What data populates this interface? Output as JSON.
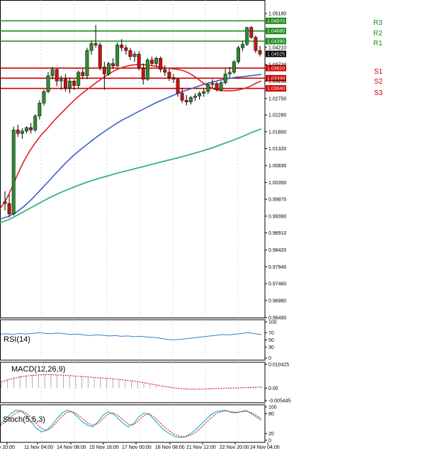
{
  "chart_data": {
    "type": "candlestick",
    "price_axis_ticks": [
      "1.05180",
      "1.04210",
      "1.03720",
      "1.03250",
      "1.02750",
      "1.02280",
      "1.01800",
      "1.01320",
      "1.00830",
      "1.00350",
      "0.99870",
      "0.99390",
      "0.98910",
      "0.98420",
      "0.97940",
      "0.97460",
      "0.96980",
      "0.96490"
    ],
    "price_range": [
      0.9649,
      1.0518
    ],
    "current_price": "1.04025",
    "x_ticks": [
      "ov 20:00",
      "11 Nov 04:00",
      "14 Nov 08:00",
      "15 Nov 16:00",
      "17 Nov 00:00",
      "18 Nov 08:00",
      "21 Nov 12:00",
      "22 Nov 20:00",
      "24 Nov 04:00"
    ],
    "levels": [
      {
        "name": "R3",
        "price": 1.0497,
        "label": "1.04970",
        "color": "#1a8a1a"
      },
      {
        "name": "R2",
        "price": 1.0468,
        "label": "1.04680",
        "color": "#1a8a1a"
      },
      {
        "name": "R1",
        "price": 1.0439,
        "label": "1.04390",
        "color": "#1a8a1a"
      },
      {
        "name": "",
        "price": 1.0362,
        "label": "1.03620",
        "color": "#cc0000"
      },
      {
        "name": "S1",
        "price": 1.0333,
        "label": "1.03330",
        "color": "#cc0000"
      },
      {
        "name": "S2",
        "price": 1.0333,
        "label": "",
        "color": "#cc0000"
      },
      {
        "name": "S3",
        "price": 1.0304,
        "label": "1.03040",
        "color": "#cc0000"
      }
    ],
    "candles": [
      [
        0.998,
        1.001,
        0.9955,
        0.9975
      ],
      [
        0.9975,
        1.0,
        0.9935,
        0.9945
      ],
      [
        0.9945,
        1.0195,
        0.994,
        1.0185
      ],
      [
        1.0185,
        1.02,
        1.0165,
        1.0175
      ],
      [
        1.0175,
        1.019,
        1.016,
        1.0182
      ],
      [
        1.0182,
        1.0195,
        1.0175,
        1.0192
      ],
      [
        1.0192,
        1.0205,
        1.0175,
        1.0185
      ],
      [
        1.0185,
        1.023,
        1.018,
        1.0225
      ],
      [
        1.0225,
        1.027,
        1.0215,
        1.0262
      ],
      [
        1.0262,
        1.03,
        1.0255,
        1.0295
      ],
      [
        1.0295,
        1.035,
        1.029,
        1.034
      ],
      [
        1.034,
        1.0365,
        1.033,
        1.0358
      ],
      [
        1.0358,
        1.036,
        1.031,
        1.0325
      ],
      [
        1.0325,
        1.034,
        1.03,
        1.033
      ],
      [
        1.033,
        1.0345,
        1.0295,
        1.0305
      ],
      [
        1.0305,
        1.0335,
        1.029,
        1.0325
      ],
      [
        1.0325,
        1.033,
        1.03,
        1.0312
      ],
      [
        1.0312,
        1.0355,
        1.0305,
        1.035
      ],
      [
        1.035,
        1.036,
        1.033,
        1.034
      ],
      [
        1.034,
        1.042,
        1.033,
        1.0412
      ],
      [
        1.0412,
        1.044,
        1.04,
        1.0432
      ],
      [
        1.0432,
        1.0485,
        1.042,
        1.0428
      ],
      [
        1.0428,
        1.0435,
        1.0355,
        1.0365
      ],
      [
        1.0365,
        1.038,
        1.03,
        1.0345
      ],
      [
        1.0345,
        1.038,
        1.034,
        1.0375
      ],
      [
        1.0375,
        1.039,
        1.036,
        1.0368
      ],
      [
        1.0368,
        1.0435,
        1.0365,
        1.0428
      ],
      [
        1.0428,
        1.0445,
        1.041,
        1.042
      ],
      [
        1.042,
        1.0428,
        1.04,
        1.0412
      ],
      [
        1.0412,
        1.042,
        1.0385,
        1.0395
      ],
      [
        1.0395,
        1.041,
        1.038,
        1.0402
      ],
      [
        1.0402,
        1.041,
        1.0355,
        1.0362
      ],
      [
        1.0362,
        1.0375,
        1.0315,
        1.033
      ],
      [
        1.033,
        1.039,
        1.0325,
        1.0385
      ],
      [
        1.0385,
        1.0395,
        1.037,
        1.0375
      ],
      [
        1.0375,
        1.0395,
        1.0365,
        1.039
      ],
      [
        1.039,
        1.0395,
        1.035,
        1.0358
      ],
      [
        1.0358,
        1.037,
        1.034,
        1.035
      ],
      [
        1.035,
        1.036,
        1.0325,
        1.0335
      ],
      [
        1.0335,
        1.0345,
        1.032,
        1.033
      ],
      [
        1.033,
        1.0335,
        1.028,
        1.029
      ],
      [
        1.029,
        1.0305,
        1.0262,
        1.027
      ],
      [
        1.027,
        1.0285,
        1.0255,
        1.0265
      ],
      [
        1.0265,
        1.0282,
        1.0258,
        1.0278
      ],
      [
        1.0278,
        1.029,
        1.0268,
        1.0282
      ],
      [
        1.0282,
        1.0295,
        1.0272,
        1.029
      ],
      [
        1.029,
        1.0302,
        1.028,
        1.0295
      ],
      [
        1.0295,
        1.032,
        1.0288,
        1.0315
      ],
      [
        1.0315,
        1.033,
        1.0305,
        1.0318
      ],
      [
        1.0318,
        1.0322,
        1.0295,
        1.03
      ],
      [
        1.03,
        1.0325,
        1.0295,
        1.032
      ],
      [
        1.032,
        1.036,
        1.0315,
        1.0345
      ],
      [
        1.0345,
        1.0365,
        1.0335,
        1.035
      ],
      [
        1.035,
        1.0385,
        1.0345,
        1.038
      ],
      [
        1.038,
        1.0425,
        1.0375,
        1.042
      ],
      [
        1.042,
        1.044,
        1.041,
        1.043
      ],
      [
        1.043,
        1.048,
        1.0425,
        1.0478
      ],
      [
        1.0478,
        1.0482,
        1.0445,
        1.045
      ],
      [
        1.045,
        1.0455,
        1.0405,
        1.0412
      ],
      [
        1.0412,
        1.0425,
        1.0395,
        1.0402
      ]
    ],
    "ma_fast": [
      0.996,
      0.9985,
      1.002,
      1.006,
      1.0095,
      1.0125,
      1.015,
      1.0172,
      1.019,
      1.021,
      1.0228,
      1.0245,
      1.0262,
      1.0278,
      1.0292,
      1.0305,
      1.0318,
      1.033,
      1.0342,
      1.0352,
      1.036,
      1.0366,
      1.037,
      1.0372,
      1.0372,
      1.037,
      1.0368,
      1.0365,
      1.0362,
      1.036,
      1.0358,
      1.0354,
      1.0346,
      1.0335,
      1.0322,
      1.031,
      1.0302,
      1.0298,
      1.0297,
      1.0297,
      1.0299,
      1.0303,
      1.0309,
      1.0318,
      1.0325
    ],
    "ma_mid": [
      0.993,
      0.9938,
      0.995,
      0.9968,
      0.999,
      1.0015,
      1.004,
      1.0065,
      1.009,
      1.0112,
      1.0132,
      1.015,
      1.0168,
      1.0184,
      1.02,
      1.0214,
      1.0226,
      1.0238,
      1.025,
      1.0262,
      1.0272,
      1.0282,
      1.0292,
      1.03,
      1.0308,
      1.0316,
      1.0322,
      1.0328,
      1.0332,
      1.0336,
      1.0338,
      1.0341,
      1.0344
    ],
    "ma_slow": [
      0.992,
      0.993,
      0.9945,
      0.996,
      0.9975,
      0.999,
      1.0003,
      1.0015,
      1.0026,
      1.0036,
      1.0045,
      1.0053,
      1.0061,
      1.0068,
      1.0075,
      1.0082,
      1.0089,
      1.0096,
      1.0103,
      1.011,
      1.0118,
      1.0126,
      1.0135,
      1.0145,
      1.0155,
      1.0166,
      1.0178,
      1.0188
    ],
    "panels": [
      {
        "name": "rsi",
        "label": "RSI(14)",
        "ticks": [
          "100",
          "70",
          "50",
          "30",
          "0"
        ],
        "range": [
          0,
          100
        ],
        "color": "#3a7bd5",
        "values": [
          66,
          67,
          65,
          68,
          66,
          68,
          70,
          68,
          67,
          69,
          67,
          65,
          66,
          64,
          62,
          64,
          63,
          61,
          62,
          60,
          61,
          59,
          60,
          58,
          57,
          55,
          52,
          50,
          51,
          53,
          55,
          57,
          59,
          61,
          63,
          65,
          64,
          66,
          68,
          70,
          67,
          65
        ]
      },
      {
        "name": "macd",
        "label": "MACD(12,26,9)",
        "ticks": [
          "0.010425",
          "0.00",
          "-0.005445"
        ],
        "range": [
          -0.005445,
          0.010425
        ],
        "histogram": [
          0.003,
          0.004,
          0.0048,
          0.0054,
          0.0058,
          0.006,
          0.0061,
          0.0061,
          0.006,
          0.0058,
          0.0056,
          0.0054,
          0.0052,
          0.005,
          0.0048,
          0.0046,
          0.0044,
          0.0042,
          0.004,
          0.0037,
          0.0034,
          0.003,
          0.0026,
          0.0021,
          0.0016,
          0.0011,
          0.0006,
          0.0002,
          -0.0002,
          -0.0004,
          -0.0005,
          -0.0005,
          -0.0004,
          -0.0003,
          -0.0002,
          -0.0001,
          0.0,
          0.0001,
          0.0002,
          0.0003,
          0.0004,
          0.0005,
          0.0006
        ],
        "signal": [
          0.0028,
          0.0036,
          0.0043,
          0.0049,
          0.0053,
          0.0056,
          0.0058,
          0.0059,
          0.0059,
          0.0058,
          0.0057,
          0.0055,
          0.0053,
          0.0051,
          0.0049,
          0.0047,
          0.0045,
          0.0043,
          0.0041,
          0.0038,
          0.0035,
          0.0032,
          0.0028,
          0.0024,
          0.0019,
          0.0014,
          0.0009,
          0.0005,
          0.0001,
          -0.0002,
          -0.0004,
          -0.0005,
          -0.0005,
          -0.0004,
          -0.0003,
          -0.0002,
          -0.0001,
          0.0,
          0.0001,
          0.0002,
          0.0003,
          0.0004,
          0.0005
        ],
        "color": "#cc0000"
      },
      {
        "name": "stoch",
        "label": "Stoch(5,5,3)",
        "ticks": [
          "100",
          "80",
          "20",
          "0"
        ],
        "range": [
          0,
          100
        ],
        "k": [
          50,
          65,
          80,
          90,
          88,
          75,
          55,
          35,
          25,
          30,
          45,
          65,
          82,
          90,
          85,
          70,
          55,
          45,
          40,
          55,
          75,
          85,
          80,
          65,
          50,
          40,
          50,
          70,
          82,
          78,
          62,
          45,
          30,
          20,
          12,
          8,
          10,
          18,
          30,
          45,
          60,
          75,
          85,
          88,
          90,
          84,
          82,
          86,
          90,
          80,
          70,
          60
        ],
        "d": [
          45,
          55,
          70,
          82,
          88,
          82,
          68,
          50,
          35,
          30,
          38,
          55,
          72,
          84,
          86,
          78,
          65,
          52,
          45,
          50,
          65,
          78,
          82,
          74,
          60,
          48,
          46,
          60,
          74,
          80,
          70,
          55,
          40,
          28,
          18,
          12,
          10,
          14,
          22,
          35,
          50,
          65,
          78,
          85,
          88,
          86,
          84,
          85,
          87,
          83,
          75,
          65
        ],
        "k_color": "#00aacc",
        "d_color": "#cc0000"
      }
    ]
  }
}
